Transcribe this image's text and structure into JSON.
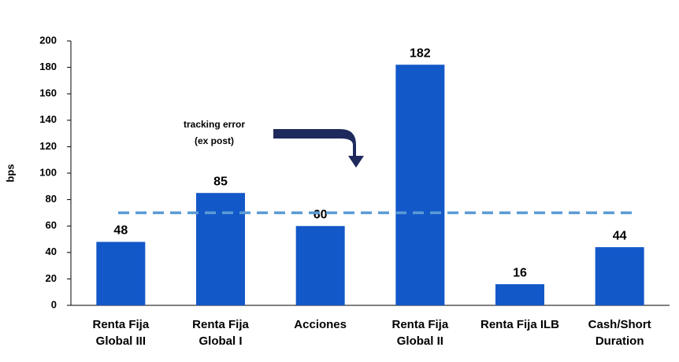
{
  "chart_data": {
    "type": "bar",
    "categories": [
      "Renta Fija Global III",
      "Renta Fija Global I",
      "Acciones",
      "Renta Fija Global II",
      "Renta Fija ILB",
      "Cash/Short Duration"
    ],
    "values": [
      48,
      85,
      60,
      182,
      16,
      44
    ],
    "color": "#1358c9",
    "y_label": "bps",
    "ylim": [
      0,
      200
    ],
    "yticks": [
      0,
      20,
      40,
      60,
      80,
      100,
      120,
      140,
      160,
      180,
      200
    ],
    "reference_line": {
      "value": 70,
      "color": "#5b9bd5"
    },
    "annotation": [
      "tracking error",
      "(ex post)"
    ]
  }
}
